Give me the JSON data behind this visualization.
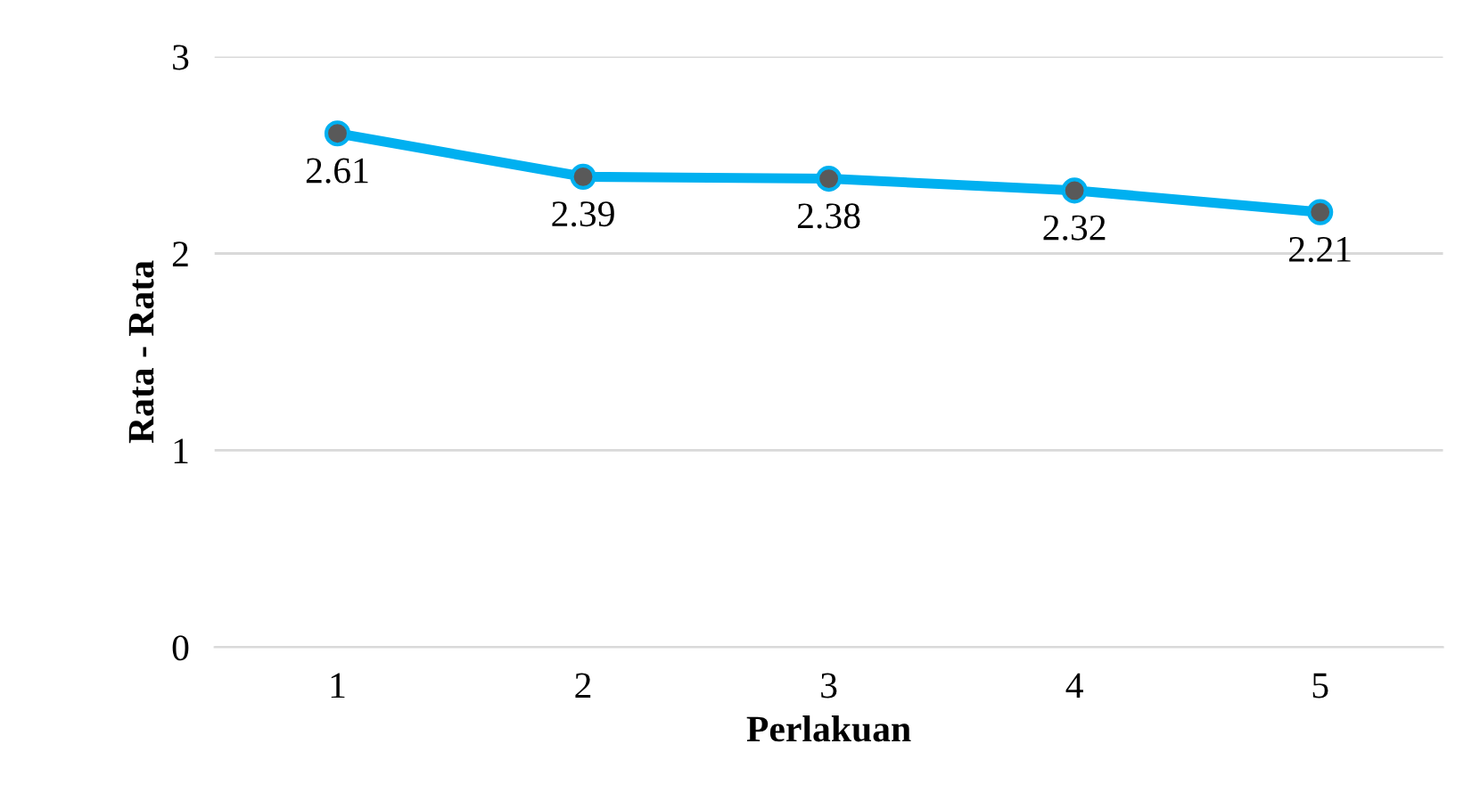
{
  "chart_data": {
    "type": "line",
    "xlabel": "Perlakuan",
    "ylabel": "Rata - Rata",
    "categories": [
      "1",
      "2",
      "3",
      "4",
      "5"
    ],
    "series": [
      {
        "color": "#00b0f0",
        "values": [
          2.61,
          2.39,
          2.38,
          2.32,
          2.21
        ]
      }
    ],
    "ylim": [
      0,
      3
    ],
    "yticks": [
      0,
      1,
      2,
      3
    ],
    "grid": "y",
    "marker": "circle",
    "line_style": "solid",
    "data_labels": true
  }
}
